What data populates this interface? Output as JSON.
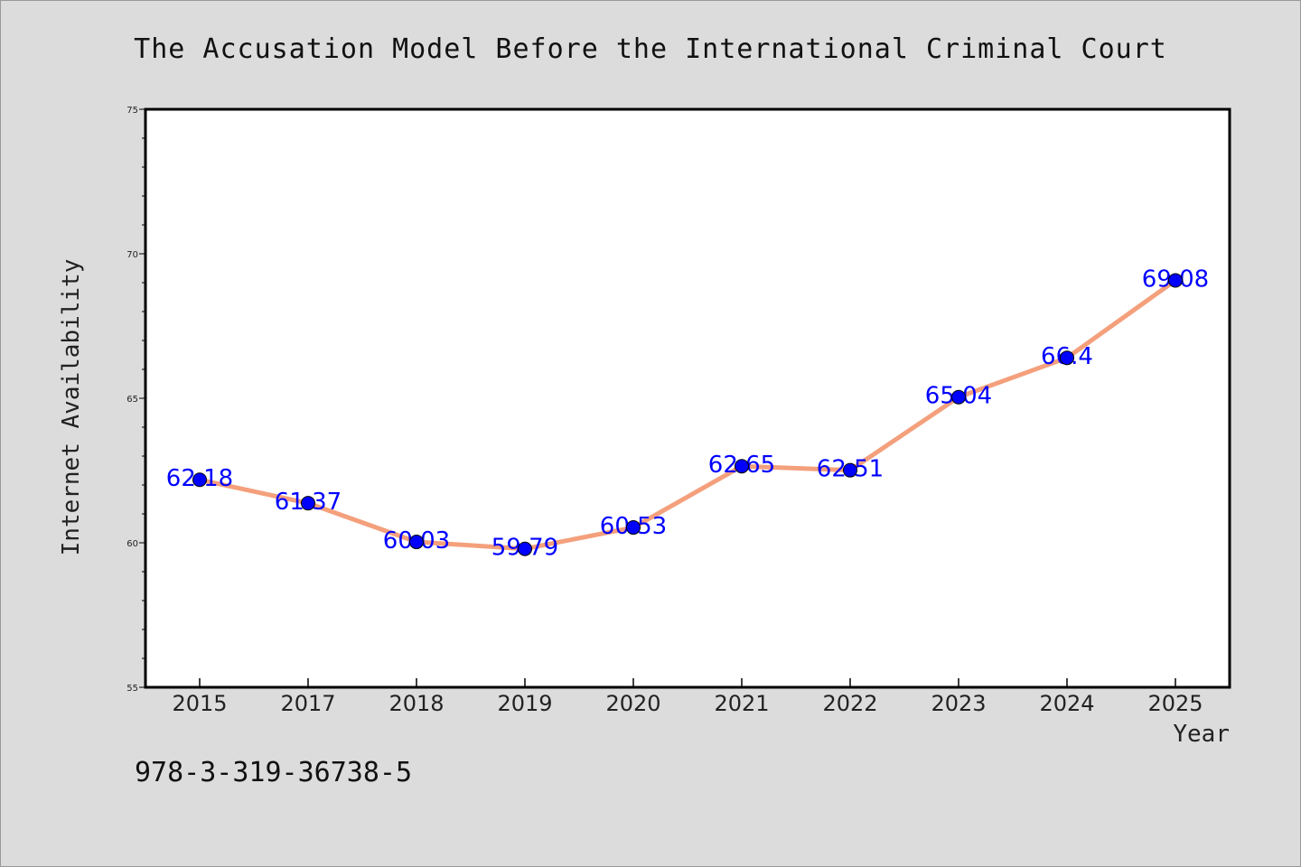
{
  "chart_data": {
    "type": "line",
    "title": "The Accusation Model Before the International Criminal Court",
    "xlabel": "Year",
    "ylabel": "Internet Availability",
    "categories": [
      "2015",
      "2017",
      "2018",
      "2019",
      "2020",
      "2021",
      "2022",
      "2023",
      "2024",
      "2025"
    ],
    "series": [
      {
        "values": [
          62.18,
          61.37,
          60.03,
          59.79,
          60.53,
          62.65,
          62.51,
          65.04,
          66.4,
          69.08
        ],
        "line_color": "#f4a07c",
        "marker_color": "#0000ff"
      }
    ],
    "data_labels": [
      "62.18",
      "61.37",
      "60.03",
      "59.79",
      "60.53",
      "62.65",
      "62.51",
      "65.04",
      "66.4",
      "69.08"
    ],
    "data_label_color": "#0000ff",
    "ylim": [
      55,
      75
    ],
    "y_ticks": [
      "55",
      "60",
      "65",
      "70",
      "75"
    ],
    "grid": false,
    "legend": "none"
  },
  "footer": {
    "isbn": "978-3-319-36738-5"
  }
}
